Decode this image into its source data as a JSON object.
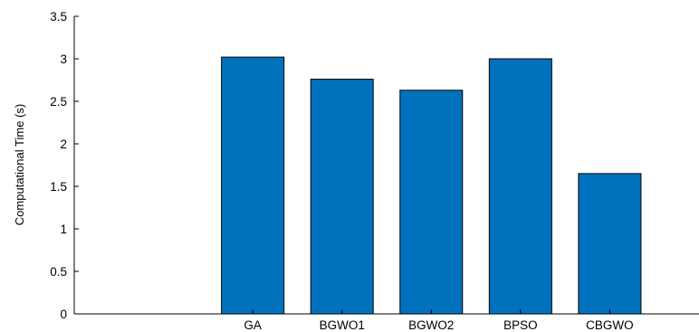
{
  "chart_data": {
    "type": "bar",
    "title": "",
    "xlabel": "",
    "ylabel": "Computational Time (s)",
    "categories": [
      "GA",
      "BGWO1",
      "BGWO2",
      "BPSO",
      "CBGWO"
    ],
    "values": [
      3.02,
      2.76,
      2.63,
      3.0,
      1.65
    ],
    "ylim": [
      0,
      3.5
    ],
    "xlim": [
      -1,
      6
    ],
    "yticks": [
      0,
      0.5,
      1,
      1.5,
      2,
      2.5,
      3,
      3.5
    ],
    "ytick_labels": [
      "0",
      "0.5",
      "1",
      "1.5",
      "2",
      "2.5",
      "3",
      "3.5"
    ],
    "grid": false,
    "legend": "none",
    "bar_color": "#0072BD"
  }
}
